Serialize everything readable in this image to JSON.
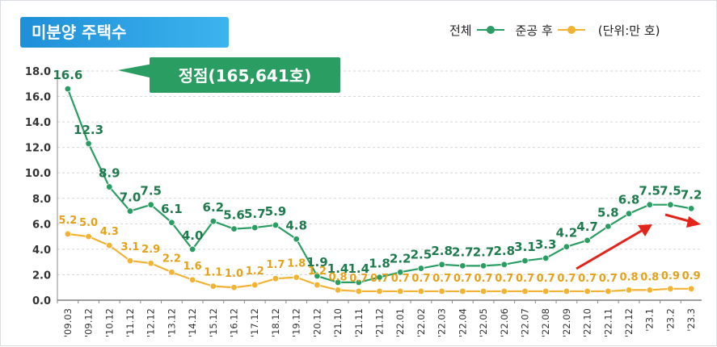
{
  "header": {
    "title": "미분양 주택수"
  },
  "legend": {
    "total_label": "전체",
    "completed_label": "준공 후",
    "unit_label": "(단위:만 호)"
  },
  "colors": {
    "total": "#2a9d63",
    "completed": "#f2b233",
    "grid": "#d6d6d6",
    "callout": "#2a9d63"
  },
  "chart_data": {
    "type": "line",
    "title": "미분양 주택수",
    "xlabel": "",
    "ylabel": "",
    "ylim": [
      0,
      18
    ],
    "yticks": [
      "0.0",
      "2.0",
      "4.0",
      "6.0",
      "8.0",
      "10.0",
      "12.0",
      "14.0",
      "16.0",
      "18.0"
    ],
    "grid": true,
    "legend_position": "top-right",
    "categories": [
      "'09.03",
      "'09.12",
      "'10.12",
      "'11.12",
      "'12.12",
      "'13.12",
      "'14.12",
      "'15.12",
      "'16.12",
      "'17.12",
      "'18.12",
      "'19.12",
      "'20.12",
      "'21.10",
      "'21.11",
      "'21.12",
      "'22.01",
      "'22.02",
      "'22.03",
      "'22.04",
      "'22.05",
      "'22.06",
      "'22.07",
      "'22.08",
      "'22.09",
      "'22.10",
      "'22.11",
      "'22.12",
      "'23.1",
      "'23.2",
      "'23.3"
    ],
    "series": [
      {
        "name": "전체",
        "values": [
          16.6,
          12.3,
          8.9,
          7.0,
          7.5,
          6.1,
          4.0,
          6.2,
          5.6,
          5.7,
          5.9,
          4.8,
          1.9,
          1.4,
          1.4,
          1.8,
          2.2,
          2.5,
          2.8,
          2.7,
          2.7,
          2.8,
          3.1,
          3.3,
          4.2,
          4.7,
          5.8,
          6.8,
          7.5,
          7.5,
          7.2
        ],
        "labels": [
          "16.6",
          "12.3",
          "8.9",
          "7.0",
          "7.5",
          "6.1",
          "4.0",
          "6.2",
          "5.6",
          "5.7",
          "5.9",
          "4.8",
          "1.9",
          "1.4",
          "1.4",
          "1.8",
          "2.2",
          "2.5",
          "2.8",
          "2.7",
          "2.7",
          "2.8",
          "3.1",
          "3.3",
          "4.2",
          "4.7",
          "5.8",
          "6.8",
          "7.5",
          "7.5",
          "7.2"
        ]
      },
      {
        "name": "준공 후",
        "values": [
          5.2,
          5.0,
          4.3,
          3.1,
          2.9,
          2.2,
          1.6,
          1.1,
          1.0,
          1.2,
          1.7,
          1.8,
          1.2,
          0.8,
          0.7,
          0.7,
          0.7,
          0.7,
          0.7,
          0.7,
          0.7,
          0.7,
          0.7,
          0.7,
          0.7,
          0.7,
          0.7,
          0.8,
          0.8,
          0.9,
          0.9
        ],
        "labels": [
          "5.2",
          "5.0",
          "4.3",
          "3.1",
          "2.9",
          "2.2",
          "1.6",
          "1.1",
          "1.0",
          "1.2",
          "1.7",
          "1.8",
          "1.2",
          "0.8",
          "0.7",
          "0.7",
          "0.7",
          "0.7",
          "0.7",
          "0.7",
          "0.7",
          "0.7",
          "0.7",
          "0.7",
          "0.7",
          "0.7",
          "0.7",
          "0.8",
          "0.8",
          "0.9",
          "0.9"
        ]
      }
    ],
    "annotations": [
      {
        "text": "정점(165,641호)",
        "target_index": 0
      }
    ]
  }
}
